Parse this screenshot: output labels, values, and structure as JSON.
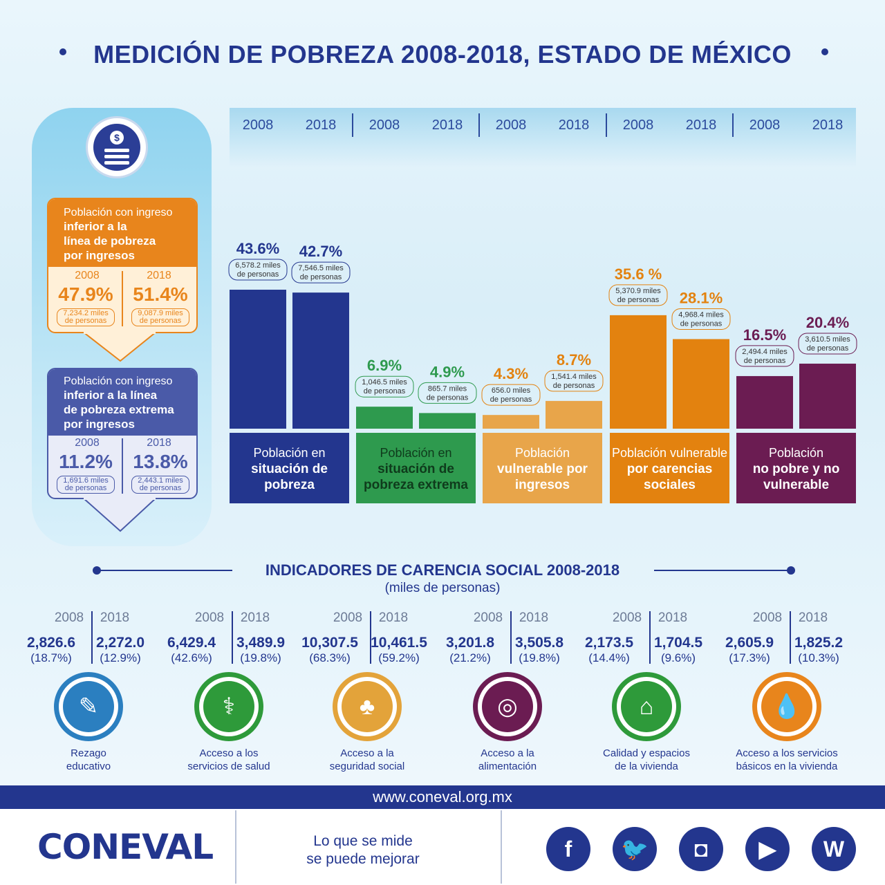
{
  "title": "MEDICIÓN DE POBREZA 2008-2018, ESTADO DE MÉXICO",
  "years": [
    "2008",
    "2018"
  ],
  "left_panel": {
    "icon": "money-coin-icon",
    "box1": {
      "line1": "Población con ingreso",
      "line2": "inferior a la",
      "line3": "línea de pobreza",
      "line4": "por ingresos",
      "y2008": "2008",
      "y2018": "2018",
      "p2008": "47.9%",
      "p2018": "51.4%",
      "n2008_a": "7,234.2 miles",
      "n2018_a": "9,087.9 miles",
      "n_b": "de personas",
      "color": "#e8851c"
    },
    "box2": {
      "line1": "Población con ingreso",
      "line2": "inferior a la línea",
      "line3": "de pobreza extrema",
      "line4": "por ingresos",
      "y2008": "2008",
      "y2018": "2018",
      "p2008": "11.2%",
      "p2018": "13.8%",
      "n2008_a": "1,691.6 miles",
      "n2018_a": "2,443.1 miles",
      "n_b": "de personas",
      "color": "#4a5aa8"
    }
  },
  "chart_data": {
    "type": "bar",
    "title": "MEDICIÓN DE POBREZA 2008-2018, ESTADO DE MÉXICO",
    "categories": [
      "Población en situación de pobreza",
      "Población en situación de pobreza extrema",
      "Población vulnerable por ingresos",
      "Población vulnerable por carencias sociales",
      "Población no pobre y no vulnerable"
    ],
    "series": [
      {
        "name": "2008",
        "values": [
          43.6,
          6.9,
          4.3,
          35.6,
          16.5
        ]
      },
      {
        "name": "2018",
        "values": [
          42.7,
          4.9,
          8.7,
          28.1,
          20.4
        ]
      }
    ],
    "labels_pct": [
      [
        "43.6%",
        "42.7%"
      ],
      [
        "6.9%",
        "4.9%"
      ],
      [
        "4.3%",
        "8.7%"
      ],
      [
        "35.6 %",
        "28.1%"
      ],
      [
        "16.5%",
        "20.4%"
      ]
    ],
    "labels_people": [
      [
        "6,578.2 miles",
        "7,546.5 miles"
      ],
      [
        "1,046.5  miles",
        "865.7 miles"
      ],
      [
        "656.0 miles",
        "1,541.4 miles"
      ],
      [
        "5,370.9  miles",
        "4,968.4 miles"
      ],
      [
        "2,494.4 miles",
        "3,610.5 miles"
      ]
    ],
    "labels_people_unit": "de personas",
    "colors_2008": [
      "#23368e",
      "#2e9a4e",
      "#e8a54a",
      "#e3820f",
      "#6b1c52"
    ],
    "colors_2018": [
      "#23368e",
      "#2e9a4e",
      "#e8a54a",
      "#e3820f",
      "#6b1c52"
    ],
    "label_colors": [
      "#23368e",
      "#2e9a4e",
      "#e3820f",
      "#e3820f",
      "#6b1c52"
    ],
    "ylim": [
      0,
      50
    ]
  },
  "categories_boxes": [
    {
      "l1": "Población en",
      "l2": "situación de",
      "l3": "pobreza",
      "bg": "#23368e",
      "fg": "#ffffff"
    },
    {
      "l1": "Población en",
      "l2": "situación de",
      "l3": "pobreza extrema",
      "bg": "#2e9a4e",
      "fg": "#0f3b1c"
    },
    {
      "l1": "Población",
      "l2": "vulnerable por",
      "l3": "ingresos",
      "bg": "#e8a54a",
      "fg": "#ffffff"
    },
    {
      "l1": "Población vulnerable",
      "l2": "por carencias",
      "l3": "sociales",
      "bg": "#e3820f",
      "fg": "#ffffff"
    },
    {
      "l1": "Población",
      "l2": "no pobre y no",
      "l3": "vulnerable",
      "bg": "#6b1c52",
      "fg": "#ffffff"
    }
  ],
  "indicators": {
    "title": "INDICADORES DE CARENCIA SOCIAL 2008-2018",
    "subtitle": "(miles de personas)",
    "items": [
      {
        "v2008": "2,826.6",
        "p2008": "(18.7%)",
        "v2018": "2,272.0",
        "p2018": "(12.9%)",
        "label1": "Rezago",
        "label2": "educativo",
        "icon": "pencil-icon",
        "glyph": "✎",
        "color": "#2b7fc0"
      },
      {
        "v2008": "6,429.4",
        "p2008": "(42.6%)",
        "v2018": "3,489.9",
        "p2018": "(19.8%)",
        "label1": "Acceso a los",
        "label2": "servicios de salud",
        "icon": "doctor-icon",
        "glyph": "⚕",
        "color": "#2e9a3a"
      },
      {
        "v2008": "10,307.5",
        "p2008": "(68.3%)",
        "v2018": "10,461.5",
        "p2018": "(59.2%)",
        "label1": "Acceso a la",
        "label2": "seguridad social",
        "icon": "family-hands-icon",
        "glyph": "♣",
        "color": "#e3a33a"
      },
      {
        "v2008": "3,201.8",
        "p2008": "(21.2%)",
        "v2018": "3,505.8",
        "p2018": "(19.8%)",
        "label1": "Acceso a la",
        "label2": "alimentación",
        "icon": "plate-cutlery-icon",
        "glyph": "◎",
        "color": "#6b1c52"
      },
      {
        "v2008": "2,173.5",
        "p2008": "(14.4%)",
        "v2018": "1,704.5",
        "p2018": "(9.6%)",
        "label1": "Calidad y espacios",
        "label2": "de la vivienda",
        "icon": "house-hands-icon",
        "glyph": "⌂",
        "color": "#2e9a3a"
      },
      {
        "v2008": "2,605.9",
        "p2008": "(17.3%)",
        "v2018": "1,825.2",
        "p2018": "(10.3%)",
        "label1": "Acceso a los servicios",
        "label2": "básicos en la vivienda",
        "icon": "water-tap-icon",
        "glyph": "💧",
        "color": "#e8851c"
      }
    ]
  },
  "footer": {
    "url": "www.coneval.org.mx",
    "logo": "CONEVAL",
    "slogan1": "Lo que se mide",
    "slogan2": "se puede mejorar",
    "social": [
      {
        "icon": "facebook-icon",
        "glyph": "f"
      },
      {
        "icon": "twitter-icon",
        "glyph": "🐦"
      },
      {
        "icon": "instagram-icon",
        "glyph": "◘"
      },
      {
        "icon": "youtube-icon",
        "glyph": "▶"
      },
      {
        "icon": "wikipedia-icon",
        "glyph": "W"
      }
    ]
  }
}
